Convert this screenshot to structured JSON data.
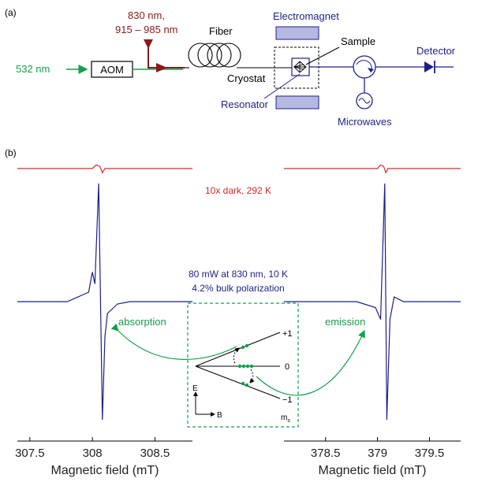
{
  "panel_a": {
    "label": "(a)",
    "laser_green": "532 nm",
    "aom": "AOM",
    "laser_red_line1": "830 nm,",
    "laser_red_line2": "915 – 985 nm",
    "fiber": "Fiber",
    "cryostat": "Cryostat",
    "electromagnet": "Electromagnet",
    "sample": "Sample",
    "resonator": "Resonator",
    "microwaves": "Microwaves",
    "detector": "Detector"
  },
  "panel_b": {
    "label": "(b)",
    "dark_label": "10x dark, 292 K",
    "light_label_line1": "80 mW at 830 nm, 10 K",
    "light_label_line2": "4.2% bulk polarization",
    "absorption": "absorption",
    "emission": "emission",
    "inset": {
      "levels": [
        "+1",
        "0",
        "−1"
      ],
      "e_axis": "E",
      "b_axis": "B",
      "ms_label": "m",
      "ms_sub": "s"
    }
  },
  "chart_data": [
    {
      "type": "line",
      "xlabel": "Magnetic field (mT)",
      "xlim": [
        307.4,
        308.8
      ],
      "ticks": [
        "307.5",
        "308",
        "308.5"
      ],
      "series": [
        {
          "name": "10x dark, 292 K",
          "color": "#d42a2a",
          "x": [
            307.4,
            308.0,
            308.03,
            308.06,
            308.08,
            308.1,
            308.2,
            308.8
          ],
          "y": [
            0,
            0,
            0.25,
            0.15,
            -0.3,
            0,
            0,
            0
          ]
        },
        {
          "name": "80 mW at 830 nm, 10 K",
          "color": "#1d1f8a",
          "x": [
            307.4,
            307.8,
            307.97,
            308.0,
            308.02,
            308.05,
            308.08,
            308.1,
            308.12,
            308.2,
            308.3,
            308.8
          ],
          "y": [
            0,
            0,
            0.08,
            0.25,
            0.15,
            1.0,
            -1.0,
            -0.3,
            -0.1,
            -0.02,
            0,
            0
          ]
        }
      ]
    },
    {
      "type": "line",
      "xlabel": "Magnetic field (mT)",
      "xlim": [
        378.1,
        379.8
      ],
      "ticks": [
        "378.5",
        "379",
        "379.5"
      ],
      "series": [
        {
          "name": "10x dark, 292 K",
          "color": "#d42a2a",
          "x": [
            378.1,
            379.0,
            379.03,
            379.06,
            379.08,
            379.1,
            379.2,
            379.8
          ],
          "y": [
            0,
            0,
            0.25,
            0.15,
            -0.3,
            0,
            0,
            0
          ]
        },
        {
          "name": "80 mW at 830 nm, 10 K",
          "color": "#1d1f8a",
          "x": [
            378.1,
            378.8,
            378.98,
            379.03,
            379.07,
            379.09,
            379.12,
            379.16,
            379.25,
            379.8
          ],
          "y": [
            0,
            0,
            -0.05,
            -0.15,
            1.0,
            -1.0,
            -0.15,
            0.04,
            0,
            0
          ]
        }
      ]
    }
  ]
}
